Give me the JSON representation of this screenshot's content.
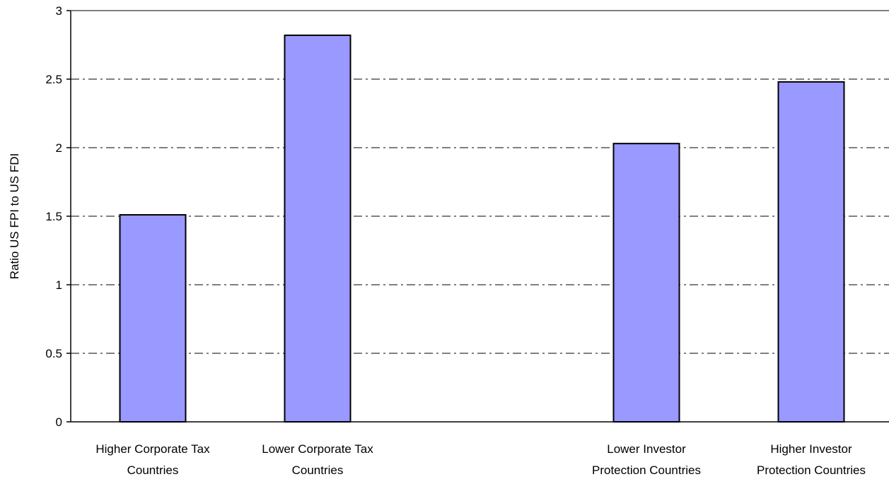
{
  "chart_data": {
    "type": "bar",
    "title": "",
    "xlabel": "",
    "ylabel": "Ratio US FPI to US FDI",
    "ylim": [
      0,
      3
    ],
    "yticks": [
      "0",
      "0.5",
      "1",
      "1.5",
      "2",
      "2.5",
      "3"
    ],
    "grid": true,
    "categories": [
      [
        "Higher Corporate Tax",
        "Countries"
      ],
      [
        "Lower Corporate Tax",
        "Countries"
      ],
      [
        "Lower Investor",
        "Protection Countries"
      ],
      [
        "Higher Investor",
        "Protection Countries"
      ]
    ],
    "slots": [
      0,
      1,
      3,
      4
    ],
    "values": [
      1.51,
      2.82,
      2.03,
      2.48
    ],
    "bar_color": "#9999ff",
    "bar_stroke": "#000000"
  }
}
